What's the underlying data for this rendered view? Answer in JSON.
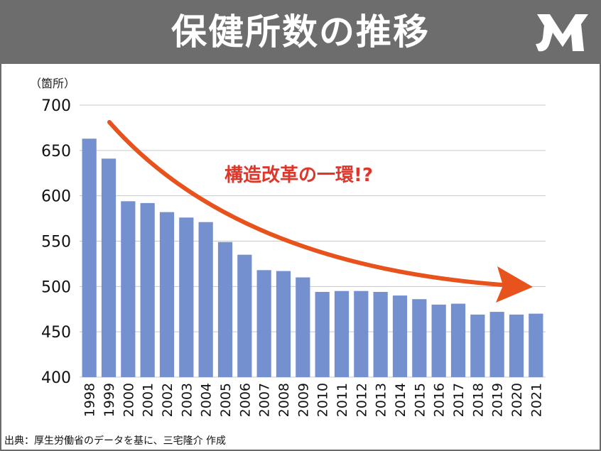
{
  "header": {
    "title": "保健所数の推移"
  },
  "logo": {
    "icon": "jm-logo-icon",
    "color": "#ffffff"
  },
  "chart_data": {
    "type": "bar",
    "title": "保健所数の推移",
    "ylabel": "（箇所）",
    "ylim": [
      400,
      700
    ],
    "yticks": [
      400,
      450,
      500,
      550,
      600,
      650,
      700
    ],
    "grid": true,
    "bar_color": "#7490cf",
    "categories": [
      "1998",
      "1999",
      "2000",
      "2001",
      "2002",
      "2003",
      "2004",
      "2005",
      "2006",
      "2007",
      "2008",
      "2009",
      "2010",
      "2011",
      "2012",
      "2013",
      "2014",
      "2015",
      "2016",
      "2017",
      "2018",
      "2019",
      "2020",
      "2021"
    ],
    "values": [
      663,
      641,
      594,
      592,
      582,
      576,
      571,
      549,
      535,
      518,
      517,
      510,
      494,
      495,
      495,
      494,
      490,
      486,
      480,
      481,
      469,
      472,
      469,
      470
    ],
    "annotation": {
      "text": "構造改革の一環!?",
      "color": "#e0362a",
      "arrow_color": "#e8521c"
    }
  },
  "footer": {
    "source": "出典：厚生労働省のデータを基に、三宅隆介 作成"
  }
}
